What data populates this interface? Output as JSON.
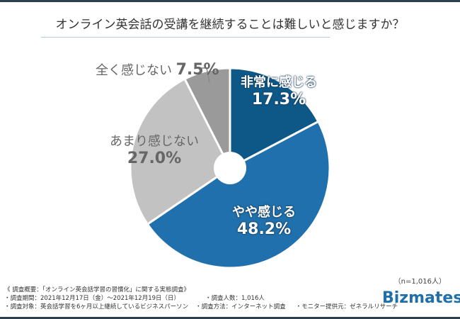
{
  "title": "オンライン英会話の受講を継続することは難しいと感じますか？",
  "chart_data": {
    "type": "pie",
    "style": "donut",
    "categories": [
      "非常に感じる",
      "やや感じる",
      "あまり感じない",
      "全く感じない"
    ],
    "values": [
      17.3,
      48.2,
      27.0,
      7.5
    ],
    "labels": [
      "17.3%",
      "48.2%",
      "27.0%",
      "7.5%"
    ],
    "colors": [
      "#0e5888",
      "#1f70ac",
      "#c2c2c2",
      "#9a9a9a"
    ]
  },
  "sample_size": "（n=1,016人）",
  "notes": {
    "heading": "《 調査概要：「オンライン英会話学習の習慣化」に関する実態調査》",
    "period": "・調査期間：2021年12月17日（金）～2021年12月19日（日）",
    "count": "・調査人数：1,016人",
    "target": "・調査対象：英会話学習を6ヶ月以上継続しているビジネスパーソン",
    "method": "・調査方法：インターネット調査",
    "provider": "・モニター提供元：ゼネラルリサーチ"
  },
  "logo": "Bizmates"
}
